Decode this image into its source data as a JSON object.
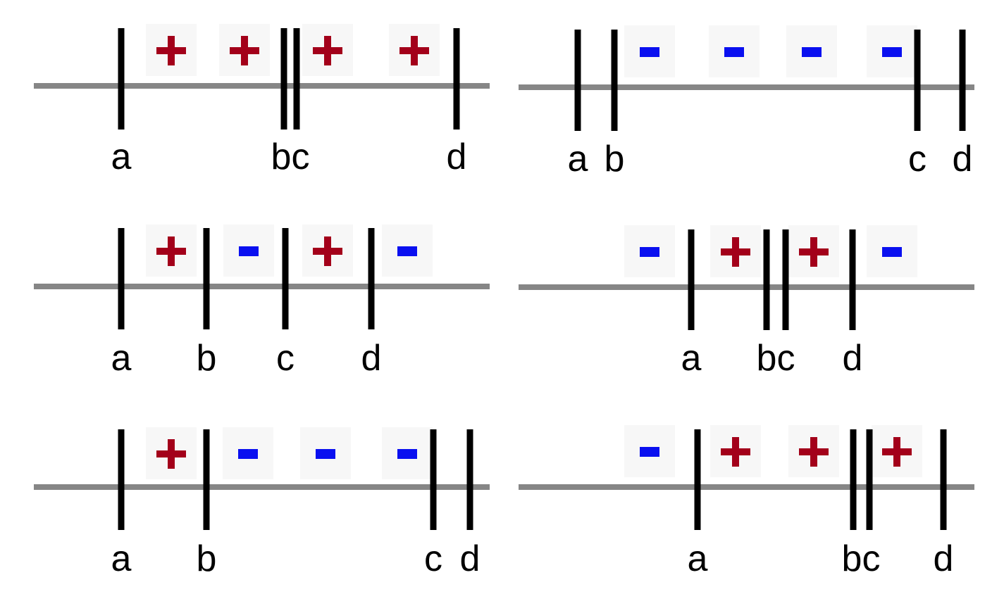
{
  "colors": {
    "axis": "#868686",
    "tick": "#000000",
    "plus": "#a3001a",
    "minus": "#0a10f0",
    "sign_background": "#f7f7f7"
  },
  "panels": [
    {
      "id": "top-left",
      "labels": [
        {
          "text": "a",
          "tick_x": 172
        },
        {
          "text": "bc",
          "tick_x": 412
        },
        {
          "text": "d",
          "tick_x": 648
        }
      ],
      "ticks_x": [
        172,
        403,
        421,
        648
      ],
      "signs": [
        {
          "symbol": "plus",
          "x": 243
        },
        {
          "symbol": "plus",
          "x": 347
        },
        {
          "symbol": "plus",
          "x": 465
        },
        {
          "symbol": "plus",
          "x": 588
        }
      ]
    },
    {
      "id": "top-right",
      "labels": [
        {
          "text": "a",
          "tick_x": 820
        },
        {
          "text": "b",
          "tick_x": 872
        },
        {
          "text": "c",
          "tick_x": 1302
        },
        {
          "text": "d",
          "tick_x": 1366
        }
      ],
      "ticks_x": [
        820,
        872,
        1302,
        1366
      ],
      "signs": [
        {
          "symbol": "minus",
          "x": 922
        },
        {
          "symbol": "minus",
          "x": 1042
        },
        {
          "symbol": "minus",
          "x": 1152
        },
        {
          "symbol": "minus",
          "x": 1266
        }
      ]
    },
    {
      "id": "middle-left",
      "labels": [
        {
          "text": "a",
          "tick_x": 172
        },
        {
          "text": "b",
          "tick_x": 293
        },
        {
          "text": "c",
          "tick_x": 405
        },
        {
          "text": "d",
          "tick_x": 527
        }
      ],
      "ticks_x": [
        172,
        293,
        405,
        527
      ],
      "signs": [
        {
          "symbol": "plus",
          "x": 243
        },
        {
          "symbol": "minus",
          "x": 353
        },
        {
          "symbol": "plus",
          "x": 465
        },
        {
          "symbol": "minus",
          "x": 578
        }
      ]
    },
    {
      "id": "middle-right",
      "labels": [
        {
          "text": "a",
          "tick_x": 981
        },
        {
          "text": "bc",
          "tick_x": 1101
        },
        {
          "text": "d",
          "tick_x": 1210
        }
      ],
      "ticks_x": [
        981,
        1088,
        1115,
        1210
      ],
      "signs": [
        {
          "symbol": "minus",
          "x": 922
        },
        {
          "symbol": "plus",
          "x": 1044
        },
        {
          "symbol": "plus",
          "x": 1155
        },
        {
          "symbol": "minus",
          "x": 1266
        }
      ]
    },
    {
      "id": "bottom-left",
      "labels": [
        {
          "text": "a",
          "tick_x": 172
        },
        {
          "text": "b",
          "tick_x": 293
        },
        {
          "text": "c",
          "tick_x": 615
        },
        {
          "text": "d",
          "tick_x": 667
        }
      ],
      "ticks_x": [
        172,
        293,
        615,
        667
      ],
      "signs": [
        {
          "symbol": "plus",
          "x": 243
        },
        {
          "symbol": "minus",
          "x": 352
        },
        {
          "symbol": "minus",
          "x": 462
        },
        {
          "symbol": "minus",
          "x": 578
        }
      ]
    },
    {
      "id": "bottom-right",
      "labels": [
        {
          "text": "a",
          "tick_x": 990
        },
        {
          "text": "bc",
          "tick_x": 1222
        },
        {
          "text": "d",
          "tick_x": 1339
        }
      ],
      "ticks_x": [
        990,
        1211,
        1234,
        1339
      ],
      "signs": [
        {
          "symbol": "minus",
          "x": 922
        },
        {
          "symbol": "plus",
          "x": 1044
        },
        {
          "symbol": "plus",
          "x": 1155
        },
        {
          "symbol": "plus",
          "x": 1273
        }
      ]
    }
  ]
}
